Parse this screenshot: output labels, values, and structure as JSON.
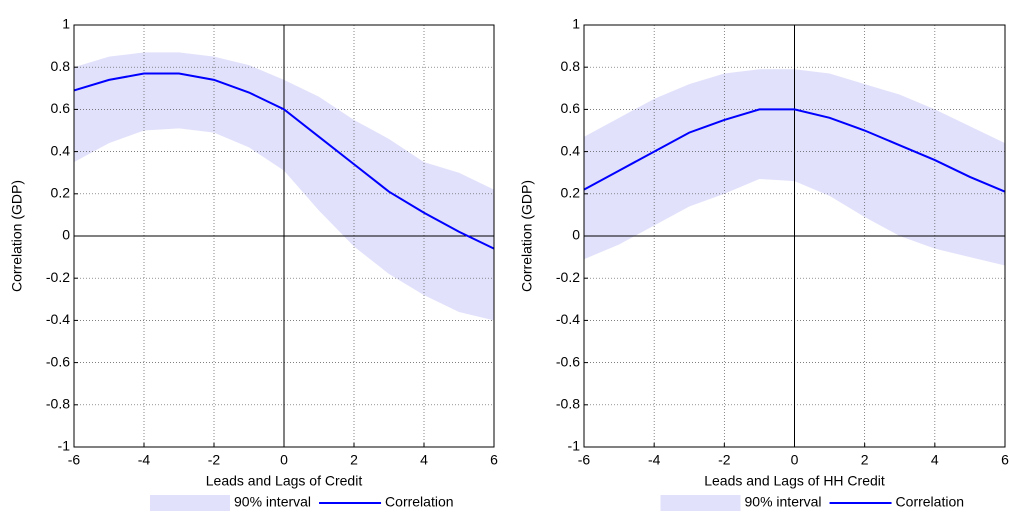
{
  "chart_data": [
    {
      "type": "line",
      "xlabel": "Leads and Lags of Credit",
      "ylabel": "Correlation (GDP)",
      "x": [
        -6,
        -5,
        -4,
        -3,
        -2,
        -1,
        0,
        1,
        2,
        3,
        4,
        5,
        6
      ],
      "series": [
        {
          "name": "90% interval",
          "color": "#e1e1fb",
          "lower": [
            0.35,
            0.44,
            0.5,
            0.51,
            0.49,
            0.42,
            0.31,
            0.12,
            -0.05,
            -0.18,
            -0.28,
            -0.36,
            -0.4
          ],
          "upper": [
            0.8,
            0.85,
            0.87,
            0.87,
            0.85,
            0.81,
            0.74,
            0.66,
            0.55,
            0.46,
            0.35,
            0.3,
            0.22
          ]
        },
        {
          "name": "Correlation",
          "color": "#0000ff",
          "values": [
            0.69,
            0.74,
            0.77,
            0.77,
            0.74,
            0.68,
            0.6,
            0.47,
            0.34,
            0.21,
            0.11,
            0.02,
            -0.06
          ]
        }
      ],
      "xlim": [
        -6,
        6
      ],
      "xticks": [
        -6,
        -4,
        -2,
        0,
        2,
        4,
        6
      ],
      "ylim": [
        -1,
        1
      ],
      "yticks": [
        -1,
        -0.8,
        -0.6,
        -0.4,
        -0.2,
        0,
        0.2,
        0.4,
        0.6,
        0.8,
        1
      ],
      "grid": true,
      "zero_lines": true,
      "legend": "bottom"
    },
    {
      "type": "line",
      "xlabel": "Leads and Lags of HH Credit",
      "ylabel": "Correlation (GDP)",
      "x": [
        -6,
        -5,
        -4,
        -3,
        -2,
        -1,
        0,
        1,
        2,
        3,
        4,
        5,
        6
      ],
      "series": [
        {
          "name": "90% interval",
          "color": "#e1e1fb",
          "lower": [
            -0.11,
            -0.04,
            0.05,
            0.14,
            0.2,
            0.27,
            0.26,
            0.19,
            0.09,
            0.0,
            -0.06,
            -0.1,
            -0.14
          ],
          "upper": [
            0.47,
            0.56,
            0.65,
            0.72,
            0.77,
            0.79,
            0.79,
            0.77,
            0.72,
            0.67,
            0.6,
            0.52,
            0.44
          ]
        },
        {
          "name": "Correlation",
          "color": "#0000ff",
          "values": [
            0.22,
            0.31,
            0.4,
            0.49,
            0.55,
            0.6,
            0.6,
            0.56,
            0.5,
            0.43,
            0.36,
            0.28,
            0.21
          ]
        }
      ],
      "xlim": [
        -6,
        6
      ],
      "xticks": [
        -6,
        -4,
        -2,
        0,
        2,
        4,
        6
      ],
      "ylim": [
        -1,
        1
      ],
      "yticks": [
        -1,
        -0.8,
        -0.6,
        -0.4,
        -0.2,
        0,
        0.2,
        0.4,
        0.6,
        0.8,
        1
      ],
      "grid": true,
      "zero_lines": true,
      "legend": "bottom"
    }
  ]
}
